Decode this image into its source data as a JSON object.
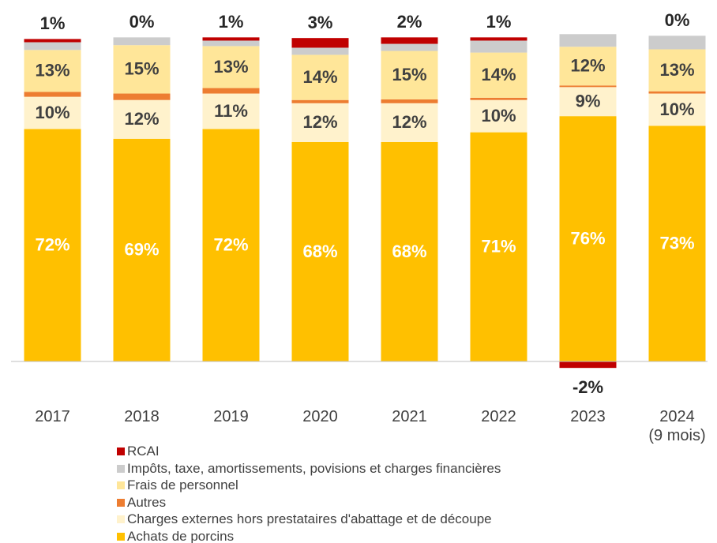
{
  "chart_data": {
    "type": "stacked_bar",
    "categories": [
      "2017",
      "2018",
      "2019",
      "2020",
      "2021",
      "2022",
      "2023",
      "2024 (9 mois)"
    ],
    "ylim": [
      -6,
      102
    ],
    "series": [
      {
        "name": "Achats de porcins",
        "color": "#ffc000",
        "values": [
          72,
          69,
          72,
          68,
          68,
          71,
          76,
          73
        ],
        "value_labels": [
          "72%",
          "69%",
          "72%",
          "68%",
          "68%",
          "71%",
          "76%",
          "73%"
        ]
      },
      {
        "name": "Charges externes hors prestataires d'abattage et de découpe",
        "color": "#fff2cc",
        "values": [
          10,
          12,
          11,
          12,
          12,
          10,
          9,
          10
        ],
        "value_labels": [
          "10%",
          "12%",
          "11%",
          "12%",
          "12%",
          "10%",
          "9%",
          "10%"
        ]
      },
      {
        "name": "Autres",
        "color": "#ed7d31",
        "values": [
          1.5,
          2,
          1.7,
          1,
          1.2,
          0.7,
          0.5,
          0.7
        ]
      },
      {
        "name": "Frais de personnel",
        "color": "#ffe699",
        "values": [
          13,
          15,
          13,
          14,
          15,
          14,
          12,
          13
        ],
        "value_labels": [
          "13%",
          "15%",
          "13%",
          "14%",
          "15%",
          "14%",
          "12%",
          "13%"
        ]
      },
      {
        "name": "Impôts, taxe, amortissements, povisions et charges financières",
        "color": "#cccccc",
        "values": [
          2.4,
          2.4,
          1.7,
          2.2,
          2.2,
          3.7,
          3.9,
          4.2
        ]
      },
      {
        "name": "RCAI",
        "color": "#c00000",
        "values": [
          1,
          0,
          1,
          3,
          2,
          1,
          -2,
          0
        ],
        "value_labels": [
          "1%",
          "0%",
          "1%",
          "3%",
          "2%",
          "1%",
          "-2%",
          "0%"
        ]
      }
    ]
  }
}
